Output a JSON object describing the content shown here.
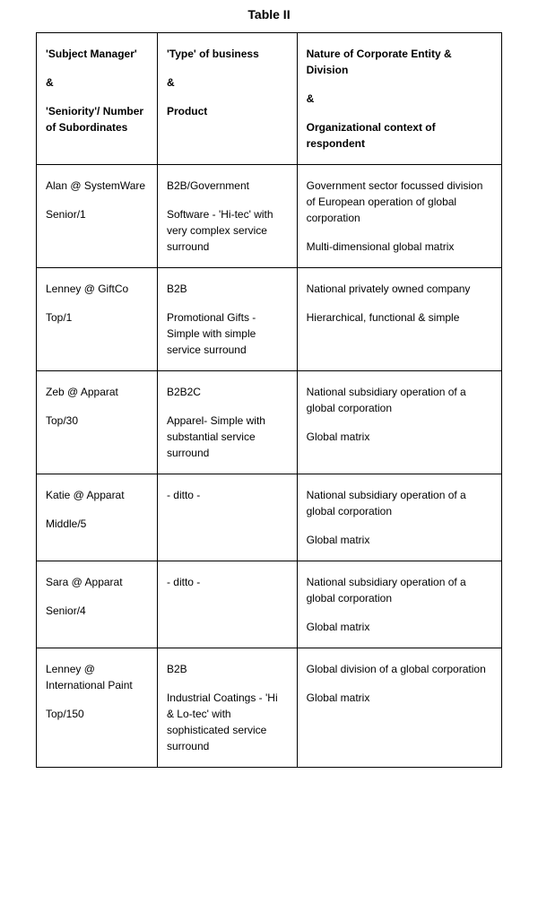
{
  "title": "Table II",
  "headers": {
    "col1": {
      "line1": "'Subject Manager'",
      "amp": "&",
      "line2": "'Seniority'/ Number of Subordinates"
    },
    "col2": {
      "line1": "'Type' of business",
      "amp": "&",
      "line2": "Product"
    },
    "col3": {
      "line1": "Nature of Corporate Entity & Division",
      "amp": "&",
      "line2": "Organizational context of respondent"
    }
  },
  "rows": [
    {
      "c1a": "Alan @ SystemWare",
      "c1b": "Senior/1",
      "c2a": "B2B/Government",
      "c2b": "Software - 'Hi-tec' with very complex service surround",
      "c3a": "Government sector focussed division of European operation of global corporation",
      "c3b": "Multi-dimensional global matrix"
    },
    {
      "c1a": "Lenney @ GiftCo",
      "c1b": "Top/1",
      "c2a": "B2B",
      "c2b": "Promotional Gifts - Simple with simple service surround",
      "c3a": "National privately owned company",
      "c3b": "Hierarchical, functional & simple"
    },
    {
      "c1a": "Zeb @ Apparat",
      "c1b": "Top/30",
      "c2a": "B2B2C",
      "c2b": "Apparel- Simple with substantial service surround",
      "c3a": "National subsidiary operation of a global corporation",
      "c3b": "Global matrix"
    },
    {
      "c1a": "Katie @ Apparat",
      "c1b": "Middle/5",
      "c2a": "- ditto -",
      "c2b": "",
      "c3a": "National subsidiary operation of a global corporation",
      "c3b": "Global matrix"
    },
    {
      "c1a": "Sara @ Apparat",
      "c1b": "Senior/4",
      "c2a": "- ditto -",
      "c2b": "",
      "c3a": "National subsidiary operation of a global corporation",
      "c3b": "Global matrix"
    },
    {
      "c1a": "Lenney @ International Paint",
      "c1b": "Top/150",
      "c2a": "B2B",
      "c2b": "Industrial Coatings - 'Hi & Lo-tec' with sophisticated service surround",
      "c3a": "Global division of a global corporation",
      "c3b": "Global matrix"
    }
  ]
}
